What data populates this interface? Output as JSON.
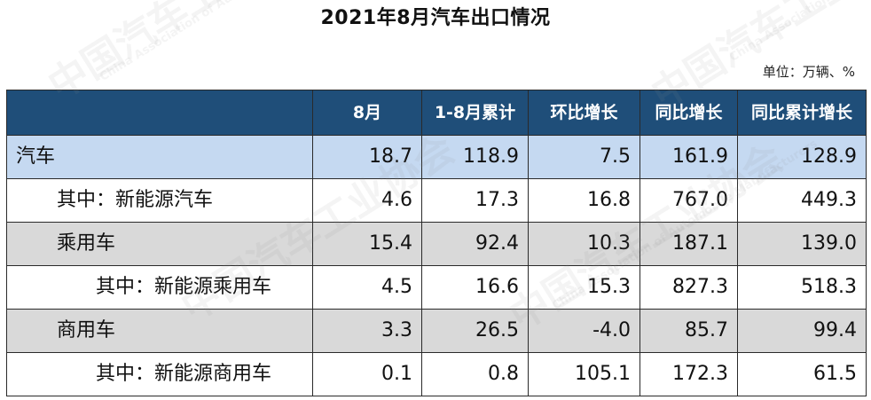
{
  "title": "2021年8月汽车出口情况",
  "unit": "单位：万辆、%",
  "watermark": {
    "cn": "中国汽车工业协会",
    "en": "China Association of Automobile Manufacturers"
  },
  "table": {
    "headers": [
      "",
      "8月",
      "1-8月累计",
      "环比增长",
      "同比增长",
      "同比累计增长"
    ],
    "rows": [
      {
        "label": "汽车",
        "cells": [
          "18.7",
          "118.9",
          "7.5",
          "161.9",
          "128.9"
        ]
      },
      {
        "label": "其中：新能源汽车",
        "cells": [
          "4.6",
          "17.3",
          "16.8",
          "767.0",
          "449.3"
        ]
      },
      {
        "label": "乘用车",
        "cells": [
          "15.4",
          "92.4",
          "10.3",
          "187.1",
          "139.0"
        ]
      },
      {
        "label": "其中：新能源乘用车",
        "cells": [
          "4.5",
          "16.6",
          "15.3",
          "827.3",
          "518.3"
        ]
      },
      {
        "label": "商用车",
        "cells": [
          "3.3",
          "26.5",
          "-4.0",
          "85.7",
          "99.4"
        ]
      },
      {
        "label": "其中：新能源商用车",
        "cells": [
          "0.1",
          "0.8",
          "105.1",
          "172.3",
          "61.5"
        ]
      }
    ]
  },
  "colors": {
    "header_bg": "#1f4e79",
    "header_text": "#ffffff",
    "main_row_bg": "#c5d9f1",
    "alt_row_bg": "#d9d9d9",
    "plain_row_bg": "#ffffff"
  }
}
